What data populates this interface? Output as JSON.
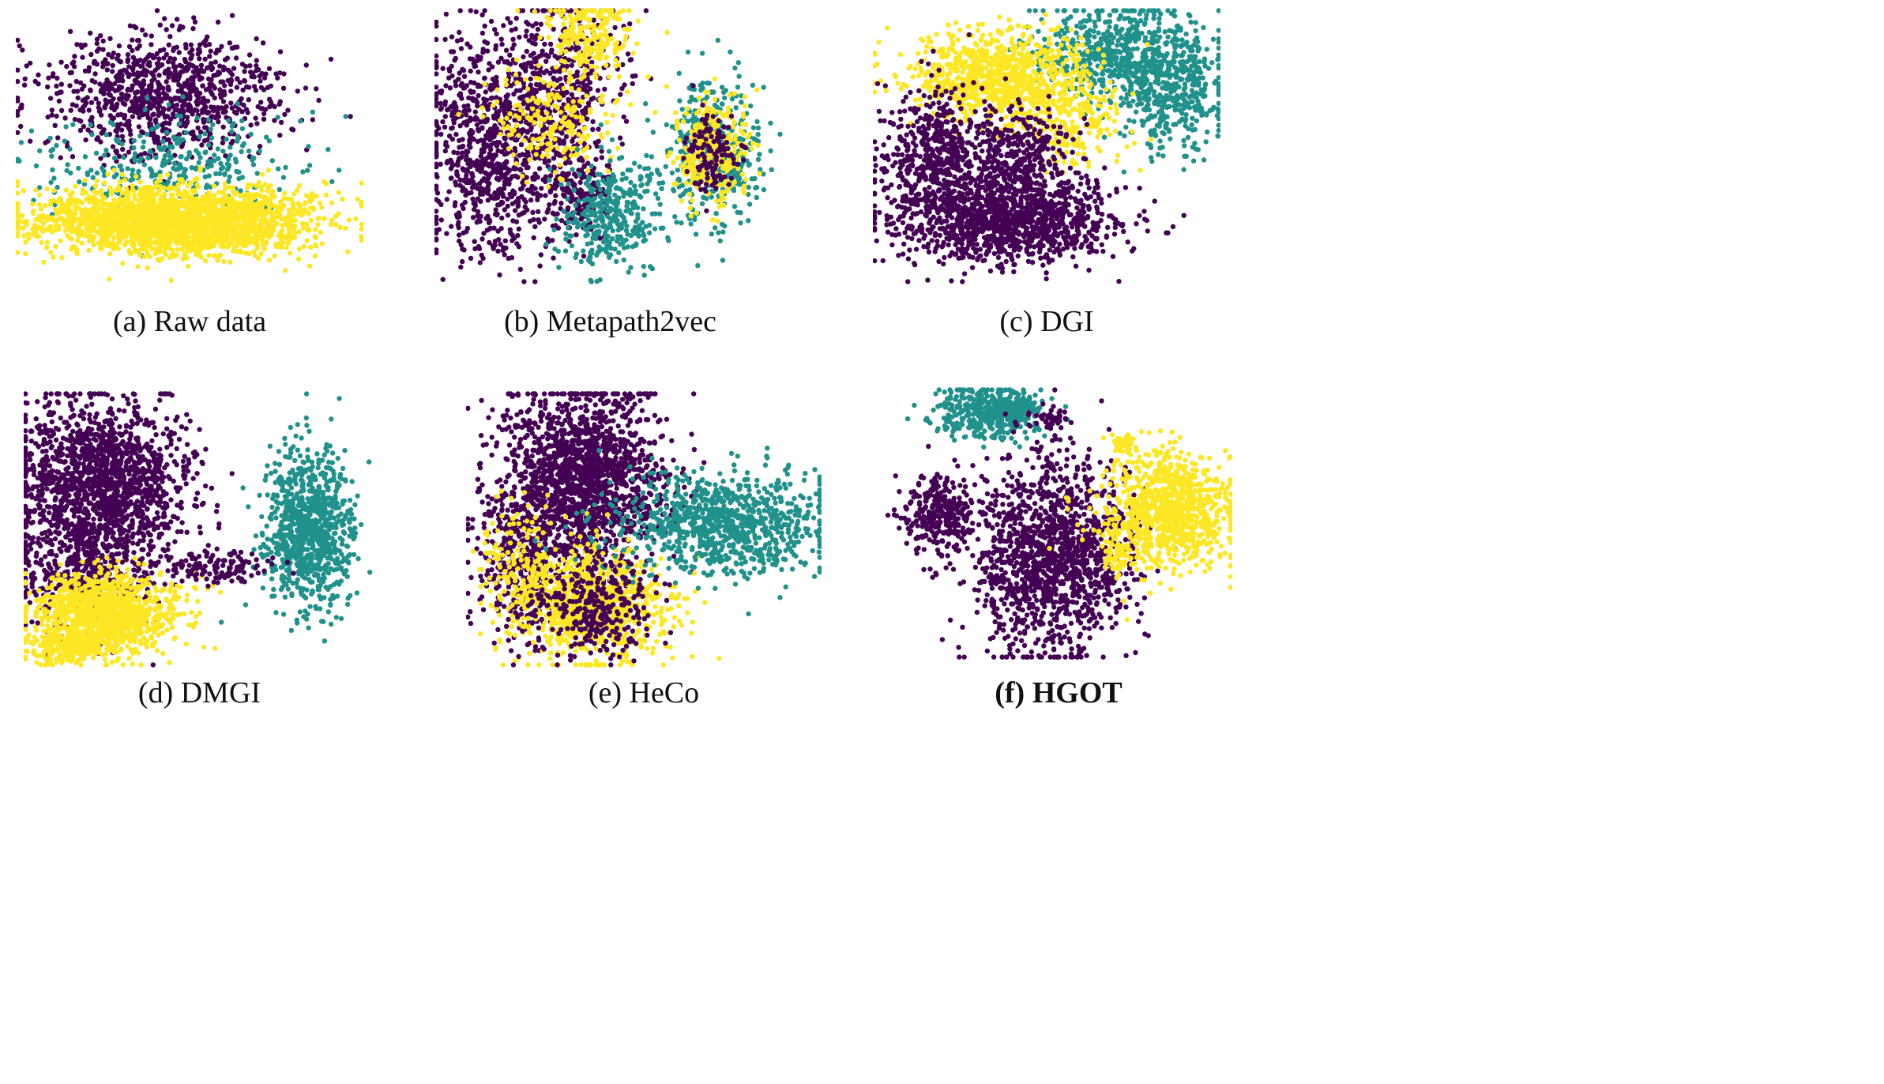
{
  "colors": {
    "class_0": "#440154",
    "class_1": "#21918c",
    "class_2": "#fde725"
  },
  "chart_data": [
    {
      "type": "scatter",
      "caption": "(a) Raw data",
      "caption_bold": false,
      "clusters": [
        {
          "class": 0,
          "cx": 0.42,
          "cy": 0.32,
          "sx": 0.17,
          "sy": 0.11,
          "n": 950
        },
        {
          "class": 1,
          "cx": 0.45,
          "cy": 0.56,
          "sx": 0.19,
          "sy": 0.09,
          "n": 320
        },
        {
          "class": 2,
          "cx": 0.46,
          "cy": 0.77,
          "sx": 0.2,
          "sy": 0.06,
          "n": 2300
        }
      ]
    },
    {
      "type": "scatter",
      "caption": "(b) Metapath2vec",
      "caption_bold": false,
      "clusters": [
        {
          "class": 0,
          "cx": 0.17,
          "cy": 0.5,
          "sx": 0.11,
          "sy": 0.2,
          "n": 900
        },
        {
          "class": 0,
          "cx": 0.37,
          "cy": 0.28,
          "sx": 0.08,
          "sy": 0.16,
          "n": 400
        },
        {
          "class": 0,
          "cx": 0.4,
          "cy": 0.67,
          "sx": 0.05,
          "sy": 0.08,
          "n": 150
        },
        {
          "class": 2,
          "cx": 0.44,
          "cy": 0.1,
          "sx": 0.07,
          "sy": 0.08,
          "n": 200
        },
        {
          "class": 2,
          "cx": 0.33,
          "cy": 0.4,
          "sx": 0.08,
          "sy": 0.1,
          "n": 200
        },
        {
          "class": 1,
          "cx": 0.5,
          "cy": 0.74,
          "sx": 0.07,
          "sy": 0.1,
          "n": 350
        },
        {
          "class": 1,
          "cx": 0.79,
          "cy": 0.52,
          "sx": 0.07,
          "sy": 0.13,
          "n": 400
        },
        {
          "class": 2,
          "cx": 0.79,
          "cy": 0.52,
          "sx": 0.05,
          "sy": 0.09,
          "n": 350
        },
        {
          "class": 0,
          "cx": 0.79,
          "cy": 0.52,
          "sx": 0.04,
          "sy": 0.07,
          "n": 120
        }
      ]
    },
    {
      "type": "scatter",
      "caption": "(c) DGI",
      "caption_bold": false,
      "clusters": [
        {
          "class": 1,
          "cx": 0.7,
          "cy": 0.16,
          "sx": 0.12,
          "sy": 0.09,
          "n": 550
        },
        {
          "class": 1,
          "cx": 0.86,
          "cy": 0.3,
          "sx": 0.08,
          "sy": 0.1,
          "n": 400
        },
        {
          "class": 2,
          "cx": 0.36,
          "cy": 0.25,
          "sx": 0.13,
          "sy": 0.08,
          "n": 900
        },
        {
          "class": 2,
          "cx": 0.57,
          "cy": 0.42,
          "sx": 0.07,
          "sy": 0.08,
          "n": 200
        },
        {
          "class": 0,
          "cx": 0.18,
          "cy": 0.52,
          "sx": 0.08,
          "sy": 0.12,
          "n": 500
        },
        {
          "class": 0,
          "cx": 0.38,
          "cy": 0.76,
          "sx": 0.15,
          "sy": 0.08,
          "n": 1300
        },
        {
          "class": 0,
          "cx": 0.42,
          "cy": 0.52,
          "sx": 0.08,
          "sy": 0.08,
          "n": 300
        }
      ]
    },
    {
      "type": "scatter",
      "caption": "(d) DMGI",
      "caption_bold": false,
      "clusters": [
        {
          "class": 0,
          "cx": 0.22,
          "cy": 0.34,
          "sx": 0.12,
          "sy": 0.15,
          "n": 1600
        },
        {
          "class": 0,
          "cx": 0.18,
          "cy": 0.68,
          "sx": 0.09,
          "sy": 0.1,
          "n": 400
        },
        {
          "class": 2,
          "cx": 0.24,
          "cy": 0.8,
          "sx": 0.1,
          "sy": 0.07,
          "n": 1100
        },
        {
          "class": 2,
          "cx": 0.12,
          "cy": 0.93,
          "sx": 0.05,
          "sy": 0.03,
          "n": 200
        },
        {
          "class": 1,
          "cx": 0.81,
          "cy": 0.5,
          "sx": 0.06,
          "sy": 0.14,
          "n": 900
        },
        {
          "class": 0,
          "cx": 0.55,
          "cy": 0.64,
          "sx": 0.07,
          "sy": 0.03,
          "n": 120
        }
      ]
    },
    {
      "type": "scatter",
      "caption": "(e) HeCo",
      "caption_bold": false,
      "clusters": [
        {
          "class": 0,
          "cx": 0.33,
          "cy": 0.32,
          "sx": 0.11,
          "sy": 0.17,
          "n": 1700
        },
        {
          "class": 0,
          "cx": 0.16,
          "cy": 0.6,
          "sx": 0.07,
          "sy": 0.13,
          "n": 400
        },
        {
          "class": 2,
          "cx": 0.36,
          "cy": 0.77,
          "sx": 0.1,
          "sy": 0.1,
          "n": 900
        },
        {
          "class": 2,
          "cx": 0.14,
          "cy": 0.62,
          "sx": 0.05,
          "sy": 0.12,
          "n": 150
        },
        {
          "class": 1,
          "cx": 0.72,
          "cy": 0.48,
          "sx": 0.15,
          "sy": 0.09,
          "n": 900
        },
        {
          "class": 0,
          "cx": 0.35,
          "cy": 0.78,
          "sx": 0.09,
          "sy": 0.09,
          "n": 300
        }
      ]
    },
    {
      "type": "scatter",
      "caption": "(f) HGOT",
      "caption_bold": true,
      "clusters": [
        {
          "class": 1,
          "cx": 0.29,
          "cy": 0.09,
          "sx": 0.07,
          "sy": 0.05,
          "n": 400
        },
        {
          "class": 1,
          "cx": 0.39,
          "cy": 0.07,
          "sx": 0.03,
          "sy": 0.02,
          "n": 100
        },
        {
          "class": 0,
          "cx": 0.49,
          "cy": 0.12,
          "sx": 0.02,
          "sy": 0.02,
          "n": 40
        },
        {
          "class": 0,
          "cx": 0.16,
          "cy": 0.46,
          "sx": 0.05,
          "sy": 0.08,
          "n": 300
        },
        {
          "class": 0,
          "cx": 0.48,
          "cy": 0.62,
          "sx": 0.11,
          "sy": 0.18,
          "n": 1400
        },
        {
          "class": 2,
          "cx": 0.82,
          "cy": 0.45,
          "sx": 0.09,
          "sy": 0.11,
          "n": 900
        },
        {
          "class": 2,
          "cx": 0.69,
          "cy": 0.21,
          "sx": 0.02,
          "sy": 0.02,
          "n": 40
        },
        {
          "class": 2,
          "cx": 0.67,
          "cy": 0.6,
          "sx": 0.02,
          "sy": 0.05,
          "n": 60
        }
      ]
    }
  ]
}
